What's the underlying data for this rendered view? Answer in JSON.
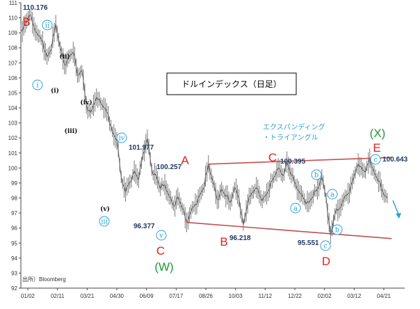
{
  "chart_data": {
    "type": "line",
    "title": "ドルインデックス（日足）",
    "source": "出所）Bloomberg",
    "xlabel": "",
    "ylabel": "",
    "ylim": [
      92,
      111
    ],
    "y_ticks": [
      "92",
      "93",
      "94",
      "95",
      "96",
      "97",
      "98",
      "99",
      "100",
      "101",
      "102",
      "103",
      "104",
      "105",
      "106",
      "107",
      "108",
      "109",
      "110",
      "111"
    ],
    "x_ticks": [
      "01/02",
      "02/11",
      "03/21",
      "04/30",
      "06/09",
      "07/17",
      "08/26",
      "10/03",
      "11/12",
      "12/22",
      "02/02",
      "03/12",
      "04/21"
    ],
    "series": [
      {
        "points": [
          [
            0,
            109.2
          ],
          [
            3,
            109.6
          ],
          [
            6,
            110.176
          ],
          [
            9,
            109.4
          ],
          [
            12,
            108.8
          ],
          [
            15,
            108.4
          ],
          [
            18,
            107.4
          ],
          [
            21,
            107.9
          ],
          [
            24,
            109.6
          ],
          [
            27,
            108.0
          ],
          [
            30,
            106.9
          ],
          [
            33,
            107.4
          ],
          [
            36,
            107.7
          ],
          [
            39,
            106.2
          ],
          [
            42,
            106.5
          ],
          [
            45,
            104.2
          ],
          [
            48,
            103.7
          ],
          [
            51,
            104.4
          ],
          [
            54,
            104.6
          ],
          [
            57,
            104.0
          ],
          [
            60,
            103.6
          ],
          [
            63,
            102.4
          ],
          [
            66,
            101.8
          ],
          [
            69,
            99.4
          ],
          [
            72,
            98.4
          ],
          [
            75,
            99.1
          ],
          [
            78,
            99.8
          ],
          [
            81,
            99.2
          ],
          [
            84,
            100.9
          ],
          [
            87,
            101.977
          ],
          [
            90,
            99.9
          ],
          [
            93,
            99.5
          ],
          [
            96,
            98.6
          ],
          [
            99,
            98.9
          ],
          [
            102,
            98.1
          ],
          [
            105,
            97.5
          ],
          [
            108,
            98.1
          ],
          [
            111,
            97.3
          ],
          [
            114,
            96.377
          ],
          [
            117,
            97.1
          ],
          [
            120,
            97.6
          ],
          [
            123,
            98.2
          ],
          [
            126,
            98.7
          ],
          [
            129,
            100.257
          ],
          [
            132,
            99.1
          ],
          [
            135,
            97.9
          ],
          [
            138,
            98.6
          ],
          [
            141,
            98.1
          ],
          [
            144,
            97.7
          ],
          [
            147,
            98.7
          ],
          [
            150,
            98.0
          ],
          [
            153,
            96.218
          ],
          [
            156,
            97.6
          ],
          [
            159,
            98.4
          ],
          [
            162,
            98.7
          ],
          [
            165,
            98.0
          ],
          [
            168,
            98.1
          ],
          [
            171,
            98.6
          ],
          [
            174,
            99.4
          ],
          [
            177,
            100.0
          ],
          [
            180,
            99.5
          ],
          [
            183,
            100.395
          ],
          [
            186,
            99.5
          ],
          [
            189,
            98.9
          ],
          [
            192,
            98.3
          ],
          [
            195,
            97.9
          ],
          [
            198,
            97.7
          ],
          [
            201,
            98.1
          ],
          [
            204,
            98.6
          ],
          [
            207,
            99.4
          ],
          [
            210,
            98.0
          ],
          [
            213,
            95.551
          ],
          [
            216,
            96.9
          ],
          [
            219,
            97.3
          ],
          [
            222,
            97.9
          ],
          [
            225,
            98.3
          ],
          [
            228,
            99.1
          ],
          [
            231,
            100.0
          ],
          [
            234,
            100.1
          ],
          [
            237,
            99.7
          ],
          [
            240,
            100.643
          ],
          [
            243,
            99.7
          ],
          [
            246,
            99.1
          ],
          [
            249,
            98.4
          ],
          [
            252,
            98.0
          ]
        ]
      }
    ],
    "price_labels": [
      "110.176",
      "101.977",
      "100.257",
      "96.377",
      "96.218",
      "100.395",
      "95.551",
      "100.643"
    ],
    "wave_labels": {
      "major": [
        "B",
        "A",
        "C",
        "B",
        "C",
        "D",
        "E"
      ],
      "degree_brackets": [
        "(W)",
        "(X)"
      ],
      "minor_circled": [
        "ii",
        "i",
        "iv",
        "iii",
        "v",
        "a",
        "b",
        "a",
        "b",
        "c",
        "c"
      ],
      "minor_paren": [
        "(ii)",
        "(i)",
        "(iv)",
        "(iii)",
        "(v)"
      ]
    },
    "annotation": [
      "エクスパンディング",
      "・トライアングル"
    ],
    "trendlines": [
      {
        "name": "upper",
        "from": [
          129,
          100.257
        ],
        "to": [
          255,
          100.7
        ]
      },
      {
        "name": "lower",
        "from": [
          114,
          96.377
        ],
        "to": [
          255,
          95.3
        ]
      }
    ],
    "grid": false,
    "legend": "none"
  }
}
